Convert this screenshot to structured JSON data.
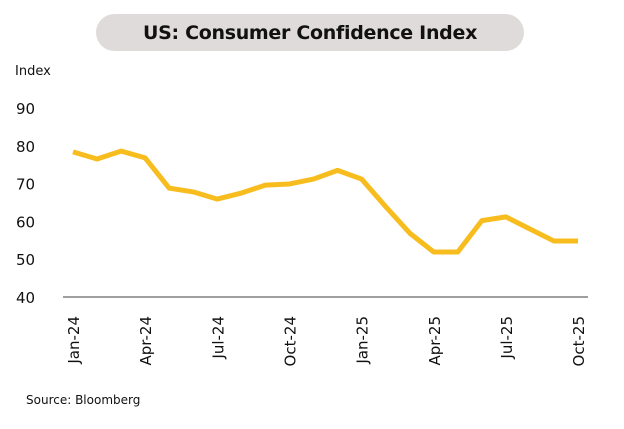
{
  "chart_data": {
    "type": "line",
    "title": "US: Consumer Confidence Index",
    "ylabel": "Index",
    "xlabel": "",
    "source": "Source: Bloomberg",
    "ylim": [
      40,
      90
    ],
    "yticks": [
      40,
      50,
      60,
      70,
      80,
      90
    ],
    "x": [
      "Jan-24",
      "Feb-24",
      "Mar-24",
      "Apr-24",
      "May-24",
      "Jun-24",
      "Jul-24",
      "Aug-24",
      "Sep-24",
      "Oct-24",
      "Nov-24",
      "Dec-24",
      "Jan-25",
      "Feb-25",
      "Mar-25",
      "Apr-25",
      "May-25",
      "Jun-25",
      "Jul-25",
      "Aug-25",
      "Sep-25",
      "Oct-25"
    ],
    "xtick_labels": [
      "Jan-24",
      "Apr-24",
      "Jul-24",
      "Oct-24",
      "Jan-25",
      "Apr-25",
      "Jul-25",
      "Oct-25"
    ],
    "series": [
      {
        "values": [
          78.4,
          76.5,
          78.6,
          76.8,
          68.8,
          67.8,
          65.9,
          67.5,
          69.6,
          69.9,
          71.2,
          73.5,
          71.2,
          63.9,
          56.9,
          51.9,
          51.9,
          60.2,
          61.2,
          58.0,
          54.8,
          54.8
        ],
        "color": "#f7bd1f"
      }
    ],
    "grid": false,
    "legend": "none"
  }
}
